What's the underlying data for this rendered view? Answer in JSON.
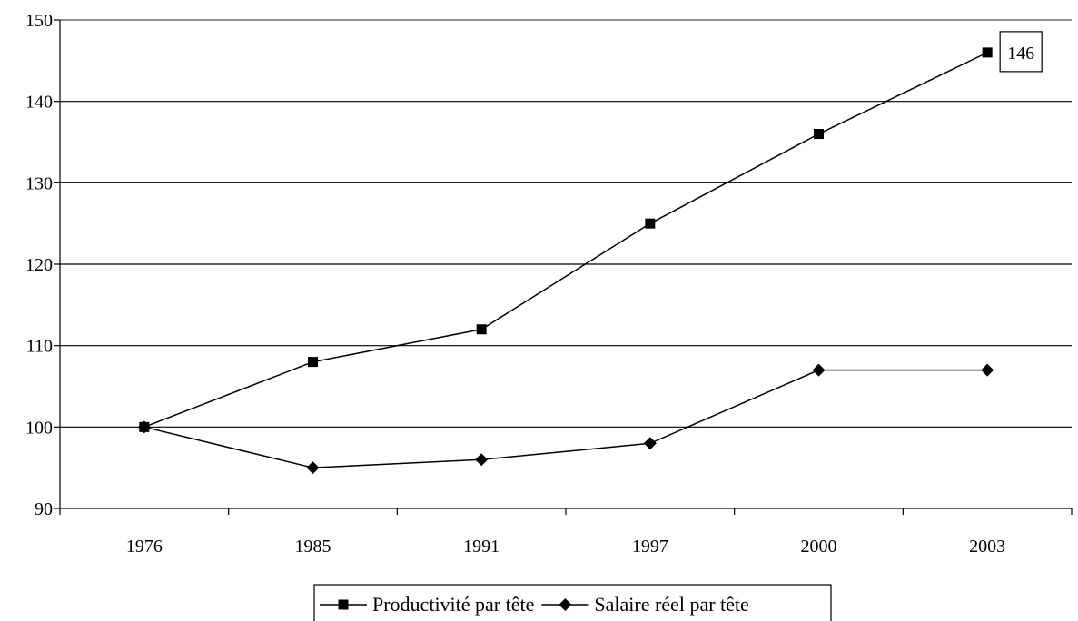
{
  "chart_data": {
    "type": "line",
    "categories": [
      "1976",
      "1985",
      "1991",
      "1997",
      "2000",
      "2003"
    ],
    "series": [
      {
        "name": "Productivité par tête",
        "marker": "square",
        "values": [
          100,
          108,
          112,
          125,
          136,
          146
        ]
      },
      {
        "name": "Salaire réel par tête",
        "marker": "diamond",
        "values": [
          100,
          95,
          96,
          98,
          107,
          107
        ]
      }
    ],
    "ylim": [
      90,
      150
    ],
    "yticks": [
      90,
      100,
      110,
      120,
      130,
      140,
      150
    ],
    "grid": true,
    "legend_position": "bottom",
    "annotations": [
      {
        "series": 0,
        "index": 5,
        "text": "146"
      }
    ],
    "colors": {
      "line": "#000000",
      "grid": "#000000",
      "background": "#ffffff"
    }
  }
}
